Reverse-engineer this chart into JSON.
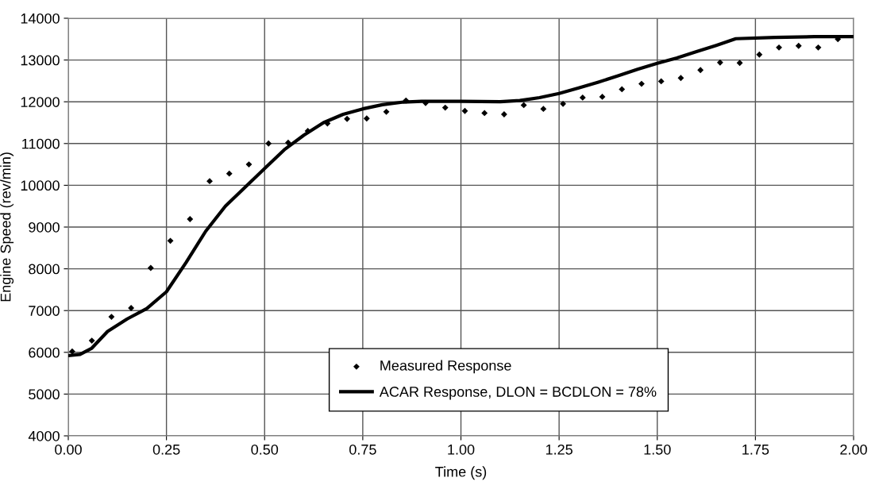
{
  "chart_data": {
    "type": "scatter",
    "xlabel": "Time (s)",
    "ylabel": "Engine Speed (rev/min)",
    "xlim": [
      0,
      2
    ],
    "ylim": [
      4000,
      14000
    ],
    "xticks": [
      {
        "value": 0,
        "label": "0.00"
      },
      {
        "value": 0.25,
        "label": "0.25"
      },
      {
        "value": 0.5,
        "label": "0.50"
      },
      {
        "value": 0.75,
        "label": "0.75"
      },
      {
        "value": 1,
        "label": "1.00"
      },
      {
        "value": 1.25,
        "label": "1.25"
      },
      {
        "value": 1.5,
        "label": "1.50"
      },
      {
        "value": 1.75,
        "label": "1.75"
      },
      {
        "value": 2,
        "label": "2.00"
      }
    ],
    "yticks": [
      4000,
      5000,
      6000,
      7000,
      8000,
      9000,
      10000,
      11000,
      12000,
      13000,
      14000
    ],
    "grid": true,
    "legend": "bottom right",
    "series": [
      {
        "name": "Measured Response",
        "marker": "diamond",
        "color": "#000000",
        "x": [
          0.01,
          0.06,
          0.11,
          0.16,
          0.21,
          0.26,
          0.31,
          0.36,
          0.41,
          0.46,
          0.51,
          0.56,
          0.61,
          0.66,
          0.71,
          0.76,
          0.81,
          0.86,
          0.91,
          0.96,
          1.01,
          1.06,
          1.11,
          1.16,
          1.21,
          1.26,
          1.31,
          1.36,
          1.41,
          1.46,
          1.51,
          1.56,
          1.61,
          1.66,
          1.71,
          1.76,
          1.81,
          1.86,
          1.91,
          1.96
        ],
        "values": [
          6020,
          6280,
          6850,
          7060,
          8020,
          8670,
          9190,
          10100,
          10280,
          10500,
          11000,
          11020,
          11300,
          11480,
          11590,
          11600,
          11760,
          12030,
          11970,
          11860,
          11780,
          11730,
          11700,
          11920,
          11830,
          11950,
          12100,
          12120,
          12300,
          12430,
          12490,
          12570,
          12760,
          12940,
          12930,
          13130,
          13300,
          13340,
          13300,
          13500
        ]
      },
      {
        "name": "ACAR Response, DLON = BCDLON = 78%",
        "type": "line",
        "line_style": "solid",
        "color": "#000000",
        "x": [
          0,
          0.03,
          0.06,
          0.1,
          0.15,
          0.2,
          0.25,
          0.3,
          0.35,
          0.4,
          0.45,
          0.5,
          0.55,
          0.6,
          0.65,
          0.7,
          0.75,
          0.8,
          0.85,
          0.9,
          1.0,
          1.1,
          1.15,
          1.2,
          1.25,
          1.3,
          1.35,
          1.4,
          1.45,
          1.5,
          1.55,
          1.6,
          1.65,
          1.7,
          1.8,
          1.9,
          2.0
        ],
        "values": [
          5920,
          5950,
          6100,
          6500,
          6800,
          7050,
          7450,
          8150,
          8900,
          9500,
          9950,
          10400,
          10850,
          11200,
          11500,
          11700,
          11830,
          11930,
          11990,
          12010,
          12010,
          12000,
          12030,
          12100,
          12200,
          12330,
          12470,
          12620,
          12780,
          12920,
          13050,
          13200,
          13350,
          13510,
          13540,
          13560,
          13560
        ]
      }
    ]
  }
}
